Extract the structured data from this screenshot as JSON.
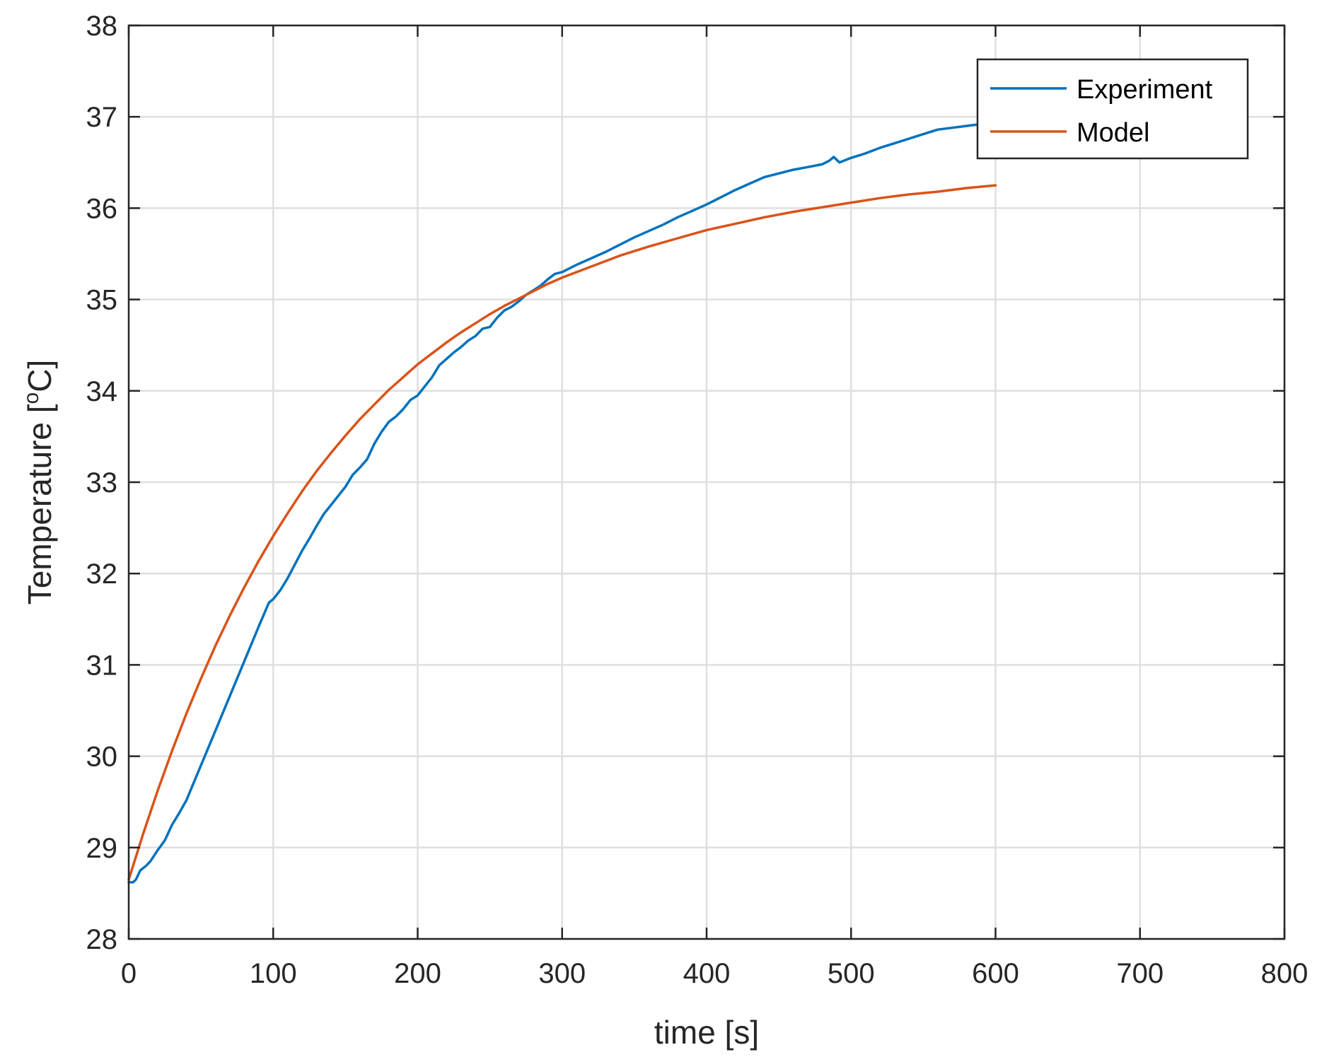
{
  "chart_data": {
    "type": "line",
    "title": "",
    "xlabel": "time [s]",
    "ylabel_main": "Temperature [",
    "ylabel_sup": "o",
    "ylabel_end": "C]",
    "xlim": [
      0,
      800
    ],
    "ylim": [
      28,
      38
    ],
    "xticks": [
      "0",
      "100",
      "200",
      "300",
      "400",
      "500",
      "600",
      "700",
      "800"
    ],
    "yticks": [
      "28",
      "29",
      "30",
      "31",
      "32",
      "33",
      "34",
      "35",
      "36",
      "37",
      "38"
    ],
    "grid": true,
    "legend_position": "top-right",
    "series": [
      {
        "name": "Experiment",
        "color": "#0072BD",
        "x": [
          0,
          3,
          5,
          8,
          12,
          15,
          20,
          25,
          30,
          35,
          40,
          50,
          60,
          70,
          80,
          90,
          97,
          100,
          105,
          110,
          115,
          120,
          125,
          130,
          135,
          140,
          145,
          150,
          155,
          160,
          165,
          170,
          175,
          180,
          185,
          190,
          195,
          200,
          205,
          210,
          215,
          220,
          225,
          230,
          235,
          240,
          245,
          250,
          255,
          260,
          265,
          270,
          275,
          280,
          285,
          290,
          295,
          300,
          310,
          320,
          330,
          340,
          350,
          360,
          370,
          380,
          390,
          400,
          410,
          420,
          430,
          440,
          450,
          460,
          470,
          480,
          485,
          488,
          492,
          500,
          510,
          520,
          530,
          540,
          550,
          560,
          570,
          580,
          590
        ],
        "y": [
          28.62,
          28.62,
          28.65,
          28.75,
          28.8,
          28.85,
          28.97,
          29.08,
          29.25,
          29.38,
          29.52,
          29.9,
          30.28,
          30.66,
          31.04,
          31.42,
          31.68,
          31.72,
          31.82,
          31.95,
          32.1,
          32.25,
          32.38,
          32.52,
          32.65,
          32.75,
          32.85,
          32.95,
          33.08,
          33.16,
          33.25,
          33.42,
          33.55,
          33.66,
          33.72,
          33.8,
          33.9,
          33.95,
          34.05,
          34.15,
          34.28,
          34.35,
          34.42,
          34.48,
          34.55,
          34.6,
          34.68,
          34.7,
          34.8,
          34.88,
          34.92,
          34.98,
          35.05,
          35.1,
          35.15,
          35.22,
          35.28,
          35.3,
          35.38,
          35.45,
          35.52,
          35.6,
          35.68,
          35.75,
          35.82,
          35.9,
          35.97,
          36.04,
          36.12,
          36.2,
          36.27,
          36.34,
          36.38,
          36.42,
          36.45,
          36.48,
          36.52,
          36.56,
          36.5,
          36.55,
          36.6,
          36.66,
          36.71,
          36.76,
          36.81,
          36.86,
          36.88,
          36.9,
          36.92
        ]
      },
      {
        "name": "Model",
        "color": "#D95319",
        "x": [
          0,
          10,
          20,
          30,
          40,
          50,
          60,
          70,
          80,
          90,
          100,
          110,
          120,
          130,
          140,
          150,
          160,
          170,
          180,
          190,
          200,
          210,
          220,
          230,
          240,
          250,
          260,
          270,
          280,
          290,
          300,
          320,
          340,
          360,
          380,
          400,
          420,
          440,
          460,
          480,
          500,
          520,
          540,
          560,
          580,
          600
        ],
        "y": [
          28.65,
          29.15,
          29.62,
          30.06,
          30.47,
          30.85,
          31.21,
          31.54,
          31.85,
          32.14,
          32.41,
          32.66,
          32.9,
          33.12,
          33.32,
          33.51,
          33.69,
          33.85,
          34.01,
          34.15,
          34.29,
          34.41,
          34.53,
          34.64,
          34.74,
          34.84,
          34.93,
          35.01,
          35.09,
          35.17,
          35.24,
          35.36,
          35.48,
          35.58,
          35.67,
          35.76,
          35.83,
          35.9,
          35.96,
          36.01,
          36.06,
          36.11,
          36.15,
          36.18,
          36.22,
          36.25
        ]
      }
    ]
  }
}
